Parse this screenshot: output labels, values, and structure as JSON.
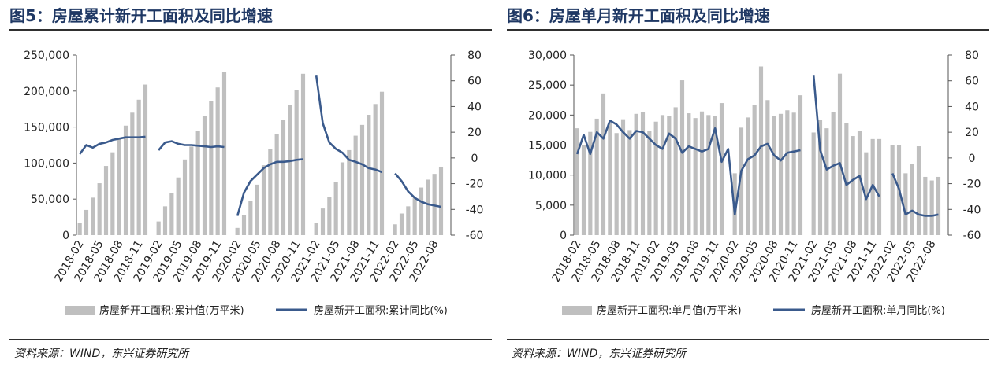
{
  "charts": [
    {
      "title": "图5：房屋累计新开工面积及同比增速",
      "source": "资料来源：WIND，东兴证券研究所",
      "bar_color": "#bfbfbf",
      "line_color": "#3a5a8c",
      "chart_data": {
        "type": "bar+line",
        "x": [
          "2018-02",
          "2018-03",
          "2018-04",
          "2018-05",
          "2018-06",
          "2018-07",
          "2018-08",
          "2018-09",
          "2018-10",
          "2018-11",
          "2018-12",
          "2019-01",
          "2019-02",
          "2019-03",
          "2019-04",
          "2019-05",
          "2019-06",
          "2019-07",
          "2019-08",
          "2019-09",
          "2019-10",
          "2019-11",
          "2019-12",
          "2020-01",
          "2020-02",
          "2020-03",
          "2020-04",
          "2020-05",
          "2020-06",
          "2020-07",
          "2020-08",
          "2020-09",
          "2020-10",
          "2020-11",
          "2020-12",
          "2021-01",
          "2021-02",
          "2021-03",
          "2021-04",
          "2021-05",
          "2021-06",
          "2021-07",
          "2021-08",
          "2021-09",
          "2021-10",
          "2021-11",
          "2021-12",
          "2022-01",
          "2022-02",
          "2022-03",
          "2022-04",
          "2022-05",
          "2022-06",
          "2022-07",
          "2022-08",
          "2022-09",
          "2022-10"
        ],
        "x_tick_labels": [
          "2018-02",
          "2018-05",
          "2018-08",
          "2018-11",
          "2019-02",
          "2019-05",
          "2019-08",
          "2019-11",
          "2020-02",
          "2020-05",
          "2020-08",
          "2020-11",
          "2021-02",
          "2021-05",
          "2021-08",
          "2021-11",
          "2022-02",
          "2022-05",
          "2022-08"
        ],
        "series": [
          {
            "name": "房屋新开工面积:累计值(万平米)",
            "kind": "bar",
            "axis": "left",
            "values": [
              17000,
              35000,
              52000,
              72000,
              96000,
              115000,
              135000,
              152000,
              170000,
              188000,
              209000,
              null,
              19000,
              40000,
              58000,
              80000,
              105000,
              123000,
              145000,
              165000,
              186000,
              205000,
              227000,
              null,
              10000,
              28000,
              47000,
              70000,
              97000,
              120000,
              140000,
              160000,
              181000,
              201000,
              224000,
              null,
              17000,
              37000,
              53000,
              74000,
              101000,
              118000,
              138000,
              153000,
              167000,
              182000,
              199000,
              null,
              15000,
              30000,
              40000,
              52000,
              66000,
              77000,
              85000,
              95000,
              null
            ]
          },
          {
            "name": "房屋新开工面积:累计同比(%)",
            "kind": "line",
            "axis": "right",
            "values": [
              3,
              10,
              8,
              11,
              12,
              14,
              15,
              16,
              16,
              16,
              16.5,
              null,
              6,
              12,
              13,
              11,
              10,
              10,
              9.5,
              9,
              8.5,
              9,
              8.5,
              null,
              -45,
              -27,
              -18,
              -13,
              -8,
              -5,
              -3,
              -3,
              -2.5,
              -1.5,
              -1,
              null,
              64,
              27,
              12,
              7,
              4,
              -1.5,
              -3,
              -5,
              -8,
              -9,
              -11,
              null,
              -12,
              -18,
              -26,
              -31,
              -34,
              -36,
              -37,
              -38,
              null
            ]
          }
        ],
        "y_left": {
          "ticks": [
            0,
            50000,
            100000,
            150000,
            200000,
            250000
          ],
          "tick_labels": [
            "0",
            "50,000",
            "100,000",
            "150,000",
            "200,000",
            "250,000"
          ],
          "range": [
            0,
            250000
          ]
        },
        "y_right": {
          "ticks": [
            -60,
            -40,
            -20,
            0,
            20,
            40,
            60,
            80
          ],
          "tick_labels": [
            "-60",
            "-40",
            "-20",
            "0",
            "20",
            "40",
            "60",
            "80"
          ],
          "range": [
            -60,
            80
          ]
        },
        "legend": {
          "position": "bottom",
          "bar_label": "房屋新开工面积:累计值(万平米)",
          "line_label": "房屋新开工面积:累计同比(%)"
        }
      }
    },
    {
      "title": "图6：房屋单月新开工面积及同比增速",
      "source": "资料来源：WIND，东兴证券研究所",
      "bar_color": "#bfbfbf",
      "line_color": "#3a5a8c",
      "chart_data": {
        "type": "bar+line",
        "x": [
          "2018-02",
          "2018-03",
          "2018-04",
          "2018-05",
          "2018-06",
          "2018-07",
          "2018-08",
          "2018-09",
          "2018-10",
          "2018-11",
          "2018-12",
          "2019-01",
          "2019-02",
          "2019-03",
          "2019-04",
          "2019-05",
          "2019-06",
          "2019-07",
          "2019-08",
          "2019-09",
          "2019-10",
          "2019-11",
          "2019-12",
          "2020-01",
          "2020-02",
          "2020-03",
          "2020-04",
          "2020-05",
          "2020-06",
          "2020-07",
          "2020-08",
          "2020-09",
          "2020-10",
          "2020-11",
          "2020-12",
          "2021-01",
          "2021-02",
          "2021-03",
          "2021-04",
          "2021-05",
          "2021-06",
          "2021-07",
          "2021-08",
          "2021-09",
          "2021-10",
          "2021-11",
          "2021-12",
          "2022-01",
          "2022-02",
          "2022-03",
          "2022-04",
          "2022-05",
          "2022-06",
          "2022-07",
          "2022-08",
          "2022-09",
          "2022-10"
        ],
        "x_tick_labels": [
          "2018-02",
          "2018-05",
          "2018-08",
          "2018-11",
          "2019-02",
          "2019-05",
          "2019-08",
          "2019-11",
          "2020-02",
          "2020-05",
          "2020-08",
          "2020-11",
          "2021-02",
          "2021-05",
          "2021-08",
          "2021-11",
          "2022-02",
          "2022-05",
          "2022-08"
        ],
        "series": [
          {
            "name": "房屋新开工面积:单月值(万平米)",
            "kind": "bar",
            "axis": "left",
            "values": [
              17800,
              15000,
              17200,
              19400,
              23600,
              18700,
              17000,
              19300,
              17500,
              20200,
              20500,
              17300,
              18900,
              20000,
              19900,
              21300,
              25800,
              20300,
              19500,
              20600,
              20000,
              19800,
              22000,
              null,
              10300,
              17900,
              19600,
              21700,
              28100,
              22500,
              19900,
              20200,
              20800,
              20400,
              23300,
              null,
              17100,
              19200,
              17800,
              20500,
              26900,
              18700,
              16500,
              17400,
              13800,
              16000,
              16000,
              null,
              15000,
              15000,
              10300,
              11900,
              14800,
              9700,
              9100,
              9700,
              null
            ]
          },
          {
            "name": "房屋新开工面积:单月同比(%)",
            "kind": "line",
            "axis": "right",
            "values": [
              3,
              18,
              3,
              20,
              15,
              29,
              26,
              20,
              15,
              21,
              20,
              15,
              10,
              7,
              19,
              15,
              4,
              9,
              7,
              5,
              7,
              23,
              -3,
              7,
              -44,
              -10,
              -1,
              2,
              9,
              11,
              2,
              -2,
              4,
              5,
              6,
              null,
              64,
              6,
              -9,
              -6,
              -4,
              -21,
              -17,
              -14,
              -32,
              -21,
              -30,
              null,
              -12,
              -24,
              -44,
              -41,
              -44,
              -45,
              -45,
              -44,
              null
            ]
          }
        ],
        "y_left": {
          "ticks": [
            0,
            5000,
            10000,
            15000,
            20000,
            25000,
            30000
          ],
          "tick_labels": [
            "0",
            "5,000",
            "10,000",
            "15,000",
            "20,000",
            "25,000",
            "30,000"
          ],
          "range": [
            0,
            30000
          ]
        },
        "y_right": {
          "ticks": [
            -60,
            -40,
            -20,
            0,
            20,
            40,
            60,
            80
          ],
          "tick_labels": [
            "-60",
            "-40",
            "-20",
            "0",
            "20",
            "40",
            "60",
            "80"
          ],
          "range": [
            -60,
            80
          ]
        },
        "legend": {
          "position": "bottom",
          "bar_label": "房屋新开工面积:单月值(万平米)",
          "line_label": "房屋新开工面积:单月同比(%)"
        }
      }
    }
  ]
}
